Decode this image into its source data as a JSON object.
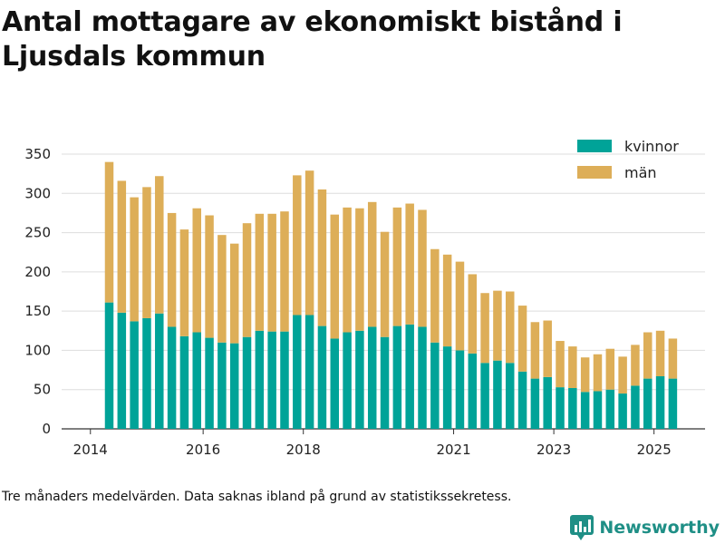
{
  "title": "Antal mottagare av ekonomiskt bistånd i Ljusdals kommun",
  "note": "Tre månaders medelvärden. Data saknas ibland på grund av statistikssekretess.",
  "brand": {
    "name": "Newsworthy",
    "color": "#1f8f86"
  },
  "colors": {
    "kvinnor": "#00a398",
    "man": "#ddae58",
    "grid": "#dddddd",
    "axis": "#333333"
  },
  "chart_data": {
    "type": "bar",
    "stacked": true,
    "title": "Antal mottagare av ekonomiskt bistånd i Ljusdals kommun",
    "xlabel": "",
    "ylabel": "",
    "ylim": [
      0,
      350
    ],
    "yticks": [
      0,
      50,
      100,
      150,
      200,
      250,
      300,
      350
    ],
    "xtick_labels": [
      "2014",
      "2016",
      "2018",
      "2021",
      "2023",
      "2025"
    ],
    "xtick_positions": [
      -1.5,
      7.5,
      15.5,
      27.5,
      35.5,
      43.5
    ],
    "legend": [
      "kvinnor",
      "män"
    ],
    "legend_position": "top-right",
    "series": [
      {
        "name": "kvinnor",
        "values": [
          161,
          148,
          137,
          141,
          147,
          130,
          118,
          123,
          116,
          110,
          109,
          117,
          125,
          124,
          124,
          145,
          145,
          131,
          115,
          123,
          125,
          130,
          117,
          131,
          133,
          130,
          110,
          105,
          100,
          96,
          84,
          87,
          84,
          73,
          64,
          66,
          53,
          52,
          47,
          48,
          50,
          45,
          55,
          64,
          67,
          64
        ]
      },
      {
        "name": "män",
        "values": [
          179,
          168,
          158,
          167,
          175,
          145,
          136,
          158,
          156,
          137,
          127,
          145,
          149,
          150,
          153,
          178,
          184,
          174,
          158,
          159,
          156,
          159,
          134,
          151,
          154,
          149,
          119,
          117,
          113,
          101,
          89,
          89,
          91,
          84,
          72,
          72,
          59,
          53,
          44,
          47,
          52,
          47,
          52,
          59,
          58,
          51
        ]
      }
    ]
  }
}
